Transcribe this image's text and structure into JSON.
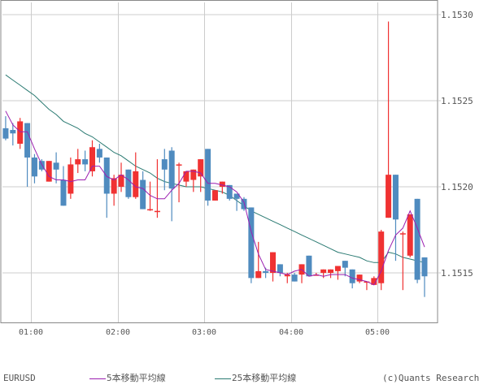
{
  "legend": {
    "symbol": "EURUSD",
    "ma5_label": "5本移動平均線",
    "ma25_label": "25本移動平均線",
    "copyright": "(c)Quants Research"
  },
  "colors": {
    "up": "#f03232",
    "down": "#4f8bbf",
    "ma5": "#9b1fb0",
    "ma25": "#2a7a72",
    "grid": "#cccccc",
    "axis": "#888888",
    "text": "#555555"
  },
  "chart_data": {
    "type": "candlestick",
    "title": "",
    "symbol": "EURUSD",
    "interval": "5min",
    "xlabel": "",
    "ylabel": "",
    "ylim": [
      1.15115,
      1.15302
    ],
    "grid": true,
    "legend_position": "bottom",
    "y_ticks": [
      "1.1530",
      "1.1525",
      "1.1520",
      "1.1515"
    ],
    "x_ticks": [
      "01:00",
      "02:00",
      "03:00",
      "04:00",
      "05:00"
    ],
    "x_tick_index": [
      4,
      16,
      28,
      40,
      52
    ],
    "candles": [
      {
        "o": 1.15234,
        "h": 1.15241,
        "l": 1.15227,
        "c": 1.15228
      },
      {
        "o": 1.15233,
        "h": 1.15237,
        "l": 1.15224,
        "c": 1.15231
      },
      {
        "o": 1.15225,
        "h": 1.1524,
        "l": 1.15222,
        "c": 1.15238
      },
      {
        "o": 1.15237,
        "h": 1.15237,
        "l": 1.152,
        "c": 1.15217
      },
      {
        "o": 1.15217,
        "h": 1.15219,
        "l": 1.15202,
        "c": 1.15206
      },
      {
        "o": 1.15215,
        "h": 1.15216,
        "l": 1.15209,
        "c": 1.1521
      },
      {
        "o": 1.15203,
        "h": 1.15215,
        "l": 1.15203,
        "c": 1.15215
      },
      {
        "o": 1.15214,
        "h": 1.1522,
        "l": 1.15202,
        "c": 1.1521
      },
      {
        "o": 1.15204,
        "h": 1.15212,
        "l": 1.15194,
        "c": 1.15189
      },
      {
        "o": 1.15196,
        "h": 1.15217,
        "l": 1.15193,
        "c": 1.15213
      },
      {
        "o": 1.15213,
        "h": 1.15222,
        "l": 1.15208,
        "c": 1.15216
      },
      {
        "o": 1.15216,
        "h": 1.15221,
        "l": 1.15209,
        "c": 1.15213
      },
      {
        "o": 1.15209,
        "h": 1.15227,
        "l": 1.15206,
        "c": 1.15223
      },
      {
        "o": 1.15222,
        "h": 1.15225,
        "l": 1.15214,
        "c": 1.15217
      },
      {
        "o": 1.15217,
        "h": 1.15217,
        "l": 1.15182,
        "c": 1.15196
      },
      {
        "o": 1.15196,
        "h": 1.15207,
        "l": 1.15189,
        "c": 1.15205
      },
      {
        "o": 1.152,
        "h": 1.15214,
        "l": 1.15197,
        "c": 1.15207
      },
      {
        "o": 1.1521,
        "h": 1.1521,
        "l": 1.15193,
        "c": 1.15194
      },
      {
        "o": 1.15194,
        "h": 1.1522,
        "l": 1.15193,
        "c": 1.15209
      },
      {
        "o": 1.15204,
        "h": 1.15209,
        "l": 1.15191,
        "c": 1.15187
      },
      {
        "o": 1.15187,
        "h": 1.15203,
        "l": 1.15186,
        "c": 1.15187
      },
      {
        "o": 1.15186,
        "h": 1.15216,
        "l": 1.15182,
        "c": 1.15186
      },
      {
        "o": 1.15216,
        "h": 1.15222,
        "l": 1.15198,
        "c": 1.1521
      },
      {
        "o": 1.15221,
        "h": 1.15223,
        "l": 1.1518,
        "c": 1.15199
      },
      {
        "o": 1.15213,
        "h": 1.15214,
        "l": 1.15191,
        "c": 1.15213
      },
      {
        "o": 1.15203,
        "h": 1.15207,
        "l": 1.152,
        "c": 1.15209
      },
      {
        "o": 1.15204,
        "h": 1.15206,
        "l": 1.15197,
        "c": 1.1521
      },
      {
        "o": 1.15206,
        "h": 1.15216,
        "l": 1.15197,
        "c": 1.15216
      },
      {
        "o": 1.15222,
        "h": 1.15222,
        "l": 1.15189,
        "c": 1.15192
      },
      {
        "o": 1.15192,
        "h": 1.15196,
        "l": 1.15192,
        "c": 1.15198
      },
      {
        "o": 1.152,
        "h": 1.152,
        "l": 1.15196,
        "c": 1.15203
      },
      {
        "o": 1.15201,
        "h": 1.15201,
        "l": 1.15192,
        "c": 1.15193
      },
      {
        "o": 1.15196,
        "h": 1.15196,
        "l": 1.15186,
        "c": 1.15193
      },
      {
        "o": 1.15193,
        "h": 1.15194,
        "l": 1.15186,
        "c": 1.15187
      },
      {
        "o": 1.15188,
        "h": 1.15188,
        "l": 1.15144,
        "c": 1.15147
      },
      {
        "o": 1.15147,
        "h": 1.15168,
        "l": 1.15147,
        "c": 1.15151
      },
      {
        "o": 1.15151,
        "h": 1.15153,
        "l": 1.15147,
        "c": 1.1515
      },
      {
        "o": 1.1515,
        "h": 1.15162,
        "l": 1.15145,
        "c": 1.15162
      },
      {
        "o": 1.15155,
        "h": 1.15155,
        "l": 1.15148,
        "c": 1.1515
      },
      {
        "o": 1.15148,
        "h": 1.1515,
        "l": 1.15144,
        "c": 1.15149
      },
      {
        "o": 1.15149,
        "h": 1.1515,
        "l": 1.15145,
        "c": 1.15145
      },
      {
        "o": 1.15149,
        "h": 1.15155,
        "l": 1.15144,
        "c": 1.15155
      },
      {
        "o": 1.1516,
        "h": 1.1516,
        "l": 1.15149,
        "c": 1.15148
      },
      {
        "o": 1.15149,
        "h": 1.1515,
        "l": 1.15149,
        "c": 1.15149
      },
      {
        "o": 1.1515,
        "h": 1.15152,
        "l": 1.15147,
        "c": 1.15152
      },
      {
        "o": 1.1515,
        "h": 1.15152,
        "l": 1.15147,
        "c": 1.15152
      },
      {
        "o": 1.15151,
        "h": 1.15154,
        "l": 1.15146,
        "c": 1.15154
      },
      {
        "o": 1.15157,
        "h": 1.15157,
        "l": 1.15148,
        "c": 1.15153
      },
      {
        "o": 1.15152,
        "h": 1.15152,
        "l": 1.15141,
        "c": 1.15144
      },
      {
        "o": 1.15145,
        "h": 1.15149,
        "l": 1.15144,
        "c": 1.15149
      },
      {
        "o": 1.15145,
        "h": 1.15145,
        "l": 1.1514,
        "c": 1.15145
      },
      {
        "o": 1.15143,
        "h": 1.15148,
        "l": 1.15143,
        "c": 1.15147
      },
      {
        "o": 1.15144,
        "h": 1.15175,
        "l": 1.1514,
        "c": 1.15174
      },
      {
        "o": 1.15182,
        "h": 1.15296,
        "l": 1.15182,
        "c": 1.15207
      },
      {
        "o": 1.15207,
        "h": 1.15203,
        "l": 1.15157,
        "c": 1.15181
      },
      {
        "o": 1.15173,
        "h": 1.15174,
        "l": 1.1514,
        "c": 1.15173
      },
      {
        "o": 1.1516,
        "h": 1.15183,
        "l": 1.15159,
        "c": 1.15184
      },
      {
        "o": 1.15193,
        "h": 1.15193,
        "l": 1.15144,
        "c": 1.15146
      },
      {
        "o": 1.15159,
        "h": 1.15159,
        "l": 1.15136,
        "c": 1.15148
      }
    ],
    "series": [
      {
        "name": "5本移動平均線",
        "color": "#9b1fb0",
        "values": [
          1.15244,
          1.15236,
          1.15232,
          1.15232,
          1.15222,
          1.15213,
          1.15206,
          1.15204,
          1.15204,
          1.15203,
          1.15204,
          1.15204,
          1.15212,
          1.15212,
          1.15206,
          1.15204,
          1.15207,
          1.15204,
          1.152,
          1.15199,
          1.15195,
          1.15193,
          1.15193,
          1.15198,
          1.15202,
          1.15209,
          1.15209,
          1.15208,
          1.15202,
          1.15202,
          1.15201,
          1.152,
          1.15197,
          1.15191,
          1.15174,
          1.15161,
          1.15152,
          1.15151,
          1.1515,
          1.15149,
          1.15151,
          1.15152,
          1.15148,
          1.15149,
          1.15148,
          1.15149,
          1.15149,
          1.15149,
          1.15147,
          1.15146,
          1.15145,
          1.15143,
          1.15151,
          1.15163,
          1.15172,
          1.15176,
          1.15186,
          1.15176,
          1.15165
        ]
      },
      {
        "name": "25本移動平均線",
        "color": "#2a7a72",
        "values": [
          1.15265,
          1.15262,
          1.15259,
          1.15256,
          1.15253,
          1.15249,
          1.15245,
          1.15242,
          1.15238,
          1.15236,
          1.15234,
          1.15231,
          1.15229,
          1.15226,
          1.15223,
          1.1522,
          1.15218,
          1.15215,
          1.15212,
          1.1521,
          1.15208,
          1.15205,
          1.15203,
          1.15202,
          1.15201,
          1.152,
          1.152,
          1.152,
          1.15199,
          1.15198,
          1.15197,
          1.15195,
          1.15192,
          1.15189,
          1.15186,
          1.15184,
          1.15182,
          1.1518,
          1.15178,
          1.15176,
          1.15174,
          1.15172,
          1.1517,
          1.15168,
          1.15166,
          1.15164,
          1.15162,
          1.15161,
          1.1516,
          1.15159,
          1.15157,
          1.15156,
          1.15156,
          1.15162,
          1.15161,
          1.15159,
          1.15158,
          1.15157,
          1.15156
        ]
      }
    ]
  }
}
